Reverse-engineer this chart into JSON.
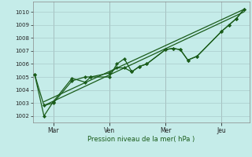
{
  "title": "Pression niveau de la mer( hPa )",
  "bg_color": "#c5ece9",
  "grid_color_major": "#aacccc",
  "grid_color_minor": "#bbdddd",
  "line_color": "#1a5c1a",
  "ylim": [
    1001.5,
    1010.8
  ],
  "yticks": [
    1002,
    1003,
    1004,
    1005,
    1006,
    1007,
    1008,
    1009,
    1010
  ],
  "xtick_labels": [
    "Mar",
    "Ven",
    "Mer",
    "Jeu"
  ],
  "xtick_positions": [
    1,
    4,
    7,
    10
  ],
  "xlim": [
    -0.1,
    11.5
  ],
  "series1_x": [
    0,
    0.5,
    1,
    2,
    2.7,
    3,
    4,
    4.4,
    4.8,
    5.2,
    5.6,
    6,
    7,
    7.4,
    7.8,
    8.2,
    8.7,
    10,
    10.4,
    10.8,
    11.2
  ],
  "series1_y": [
    1005.2,
    1002.8,
    1003.0,
    1004.7,
    1005.0,
    1005.0,
    1005.0,
    1006.0,
    1006.4,
    1005.4,
    1005.8,
    1006.0,
    1007.1,
    1007.2,
    1007.1,
    1006.3,
    1006.6,
    1008.5,
    1009.0,
    1009.5,
    1010.2
  ],
  "series2_x": [
    0,
    0.5,
    1,
    2,
    2.7,
    3,
    4,
    4.4,
    4.8,
    5.2,
    5.6,
    6,
    7,
    7.4,
    7.8,
    8.2,
    8.7,
    10,
    10.4,
    10.8,
    11.2
  ],
  "series2_y": [
    1005.2,
    1002.0,
    1003.1,
    1004.9,
    1004.6,
    1005.0,
    1005.3,
    1005.7,
    1005.7,
    1005.4,
    1005.8,
    1006.0,
    1007.1,
    1007.2,
    1007.1,
    1006.3,
    1006.6,
    1008.5,
    1009.0,
    1009.5,
    1010.2
  ],
  "trend1_x": [
    0.5,
    11.2
  ],
  "trend1_y": [
    1002.8,
    1010.0
  ],
  "trend2_x": [
    0.5,
    11.2
  ],
  "trend2_y": [
    1003.1,
    1010.2
  ]
}
